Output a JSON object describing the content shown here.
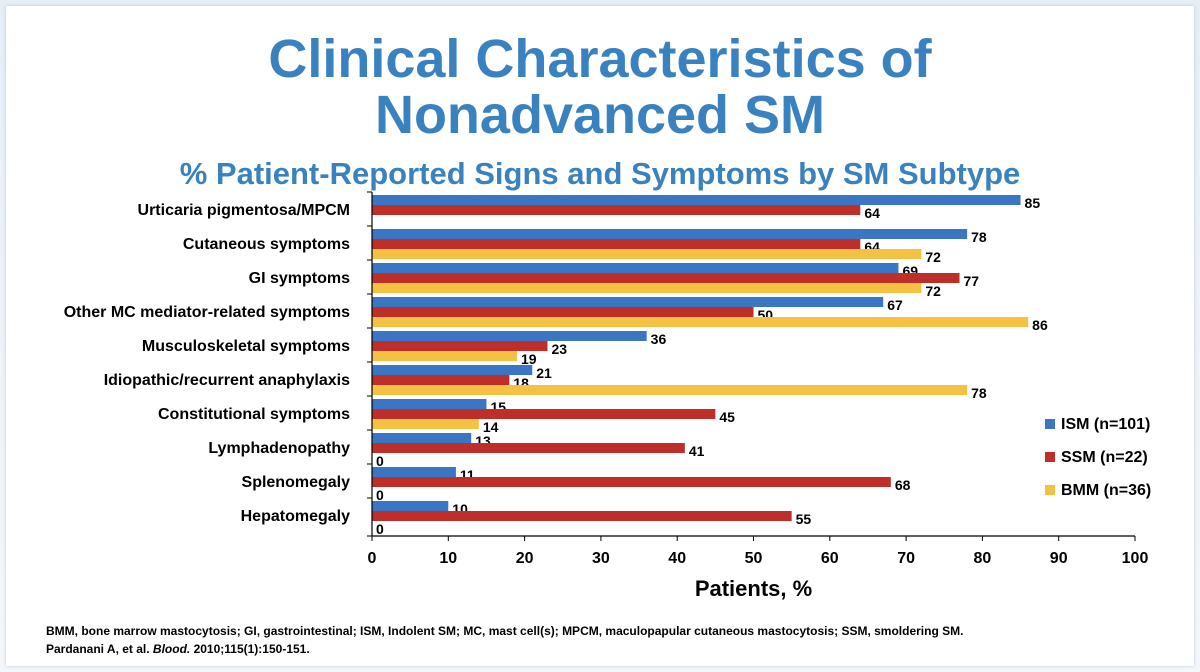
{
  "slide": {
    "title_line1": "Clinical Characteristics of",
    "title_line2": "Nonadvanced SM",
    "subtitle": "% Patient-Reported Signs and Symptoms by SM Subtype",
    "footnote_line1": "BMM, bone marrow mastocytosis; GI, gastrointestinal; ISM, Indolent SM; MC, mast cell(s); MPCM, maculopapular cutaneous mastocytosis; SSM, smoldering SM.",
    "footnote_line2_prefix": "Pardanani A, et al. ",
    "footnote_line2_journal": "Blood.",
    "footnote_line2_suffix": " 2010;115(1):150-151."
  },
  "chart_data": {
    "type": "bar",
    "orientation": "horizontal",
    "categories": [
      "Urticaria pigmentosa/MPCM",
      "Cutaneous symptoms",
      "GI symptoms",
      "Other MC mediator-related symptoms",
      "Musculoskeletal symptoms",
      "Idiopathic/recurrent anaphylaxis",
      "Constitutional symptoms",
      "Lymphadenopathy",
      "Splenomegaly",
      "Hepatomegaly"
    ],
    "series": [
      {
        "name": "ISM (n=101)",
        "color": "#3a76c4",
        "values": [
          85,
          78,
          69,
          67,
          36,
          21,
          15,
          13,
          11,
          10
        ]
      },
      {
        "name": "SSM (n=22)",
        "color": "#bf2f2a",
        "values": [
          64,
          64,
          77,
          50,
          23,
          18,
          45,
          41,
          68,
          55
        ]
      },
      {
        "name": "BMM (n=36)",
        "color": "#f5c142",
        "values": [
          null,
          72,
          72,
          86,
          19,
          78,
          14,
          0,
          0,
          0
        ]
      }
    ],
    "xlabel": "Patients, %",
    "xlim": [
      0,
      100
    ],
    "xticks": [
      0,
      10,
      20,
      30,
      40,
      50,
      60,
      70,
      80,
      90,
      100
    ],
    "legend_position": "right",
    "grid": false
  }
}
